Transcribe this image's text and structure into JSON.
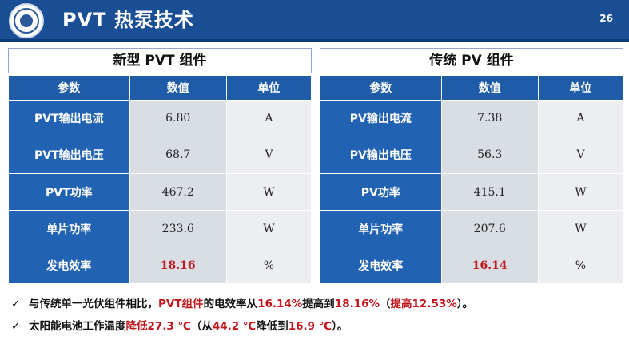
{
  "header": {
    "title": "PVT 热泵技术",
    "page_number": "26"
  },
  "left": {
    "title": "新型 PVT 组件",
    "columns": [
      "参数",
      "数值",
      "单位"
    ],
    "rows": [
      {
        "param": "PVT输出电流",
        "value": "6.80",
        "unit": "A"
      },
      {
        "param": "PVT输出电压",
        "value": "68.7",
        "unit": "V"
      },
      {
        "param": "PVT功率",
        "value": "467.2",
        "unit": "W"
      },
      {
        "param": "单片功率",
        "value": "233.6",
        "unit": "W"
      },
      {
        "param": "发电效率",
        "value": "18.16",
        "unit": "%"
      }
    ]
  },
  "right": {
    "title": "传统 PV 组件",
    "columns": [
      "参数",
      "数值",
      "单位"
    ],
    "rows": [
      {
        "param": "PV输出电流",
        "value": "7.38",
        "unit": "A"
      },
      {
        "param": "PV输出电压",
        "value": "56.3",
        "unit": "V"
      },
      {
        "param": "PV功率",
        "value": "415.1",
        "unit": "W"
      },
      {
        "param": "单片功率",
        "value": "207.6",
        "unit": "W"
      },
      {
        "param": "发电效率",
        "value": "16.14",
        "unit": "%"
      }
    ]
  },
  "notes": {
    "check": "✓",
    "n1": {
      "a": "与传统单一光伏组件相比，",
      "b": "PVT组件",
      "c": "的电效率从",
      "d": "16.14%",
      "e": "提高到",
      "f": "18.16%",
      "g": "（",
      "h": "提高12.53%",
      "i": "）。"
    },
    "n2": {
      "a": "太阳能电池工作温度",
      "b": "降低27.3 ℃",
      "c": "（从",
      "d": "44.2 ℃",
      "e": "降低到",
      "f": "16.9 ℃",
      "g": "）。"
    }
  },
  "colors": {
    "header": "#1b4f95",
    "param_cell": "#2162b2",
    "highlight": "#c0151b"
  }
}
